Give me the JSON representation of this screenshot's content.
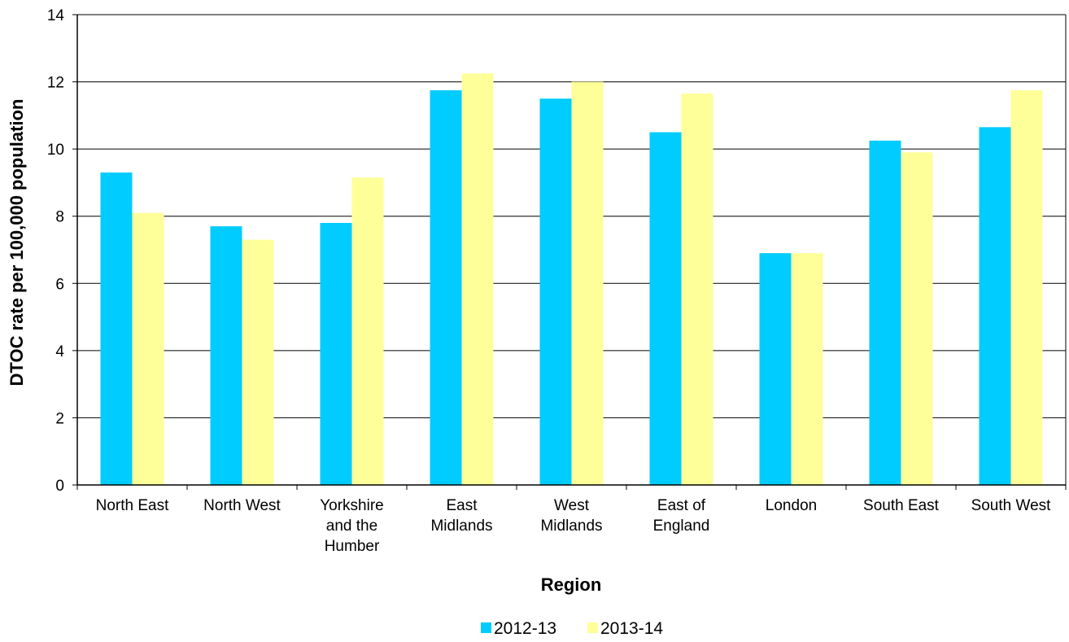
{
  "chart_data": {
    "type": "bar",
    "categories": [
      [
        "North East"
      ],
      [
        "North West"
      ],
      [
        "Yorkshire",
        "and the",
        "Humber"
      ],
      [
        "East",
        "Midlands"
      ],
      [
        "West",
        "Midlands"
      ],
      [
        "East of",
        "England"
      ],
      [
        "London"
      ],
      [
        "South East"
      ],
      [
        "South West"
      ]
    ],
    "series": [
      {
        "name": "2012-13",
        "color": "#00CCFF",
        "values": [
          9.3,
          7.7,
          7.8,
          11.75,
          11.5,
          10.5,
          6.9,
          10.25,
          10.65
        ]
      },
      {
        "name": "2013-14",
        "color": "#FFFF99",
        "values": [
          8.1,
          7.3,
          9.15,
          12.25,
          12.0,
          11.65,
          6.9,
          9.9,
          11.75
        ]
      }
    ],
    "xlabel": "Region",
    "ylabel": "DTOC rate per 100,000 population",
    "ylim": [
      0,
      14
    ],
    "yticks": [
      0,
      2,
      4,
      6,
      8,
      10,
      12,
      14
    ],
    "grid": true,
    "legend": "bottom"
  }
}
